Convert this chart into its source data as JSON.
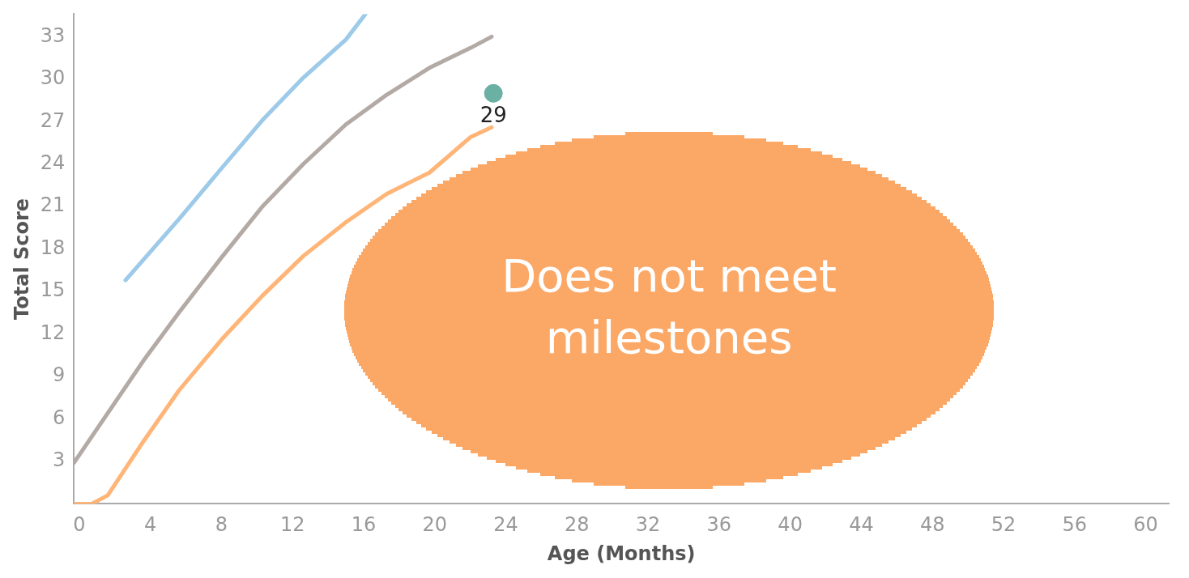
{
  "chart_data": {
    "type": "line",
    "xlabel": "Age (Months)",
    "ylabel": "Total Score",
    "xlim": [
      -0.3,
      61.3
    ],
    "xticks": [
      0,
      4,
      8,
      12,
      16,
      20,
      24,
      28,
      32,
      36,
      40,
      44,
      48,
      52,
      56,
      60
    ],
    "ylim": [
      0,
      34.6
    ],
    "yticks": [
      3,
      6,
      9,
      12,
      15,
      18,
      21,
      24,
      27,
      30,
      33
    ],
    "grid": false,
    "legend": false,
    "line_style": "solid",
    "series": [
      {
        "type": "line",
        "color": "#9ecae9",
        "marker": "none",
        "x": [
          2.6,
          5.6,
          8,
          10.3,
          12.6,
          15,
          16.1
        ],
        "values": [
          15.8,
          20.1,
          23.7,
          27.1,
          30.1,
          32.8,
          34.6
        ]
      },
      {
        "type": "line",
        "color": "#b3aaa5",
        "marker": "none",
        "x": [
          -0.3,
          3.6,
          5.6,
          8,
          10.3,
          12.6,
          15,
          17.3,
          19.7,
          22,
          23.2
        ],
        "values": [
          2.9,
          10.1,
          13.5,
          17.4,
          21,
          24,
          26.8,
          28.9,
          30.8,
          32.2,
          33
        ]
      },
      {
        "type": "line",
        "color": "#ffb578",
        "marker": "none",
        "x": [
          -0.3,
          0.7,
          1.6,
          3.6,
          5.6,
          8,
          10.3,
          12.6,
          15,
          17.3,
          19.7,
          22,
          23.2
        ],
        "values": [
          0,
          0,
          0.6,
          4.4,
          8,
          11.6,
          14.7,
          17.5,
          19.9,
          21.9,
          23.4,
          25.9,
          26.6
        ]
      },
      {
        "type": "scatter",
        "color": "#6ab0a3",
        "marker": "circle",
        "x": [
          23.3
        ],
        "values": [
          29
        ],
        "value_labels": [
          "29"
        ]
      }
    ],
    "annotations": [
      "Does not meet milestones"
    ]
  }
}
